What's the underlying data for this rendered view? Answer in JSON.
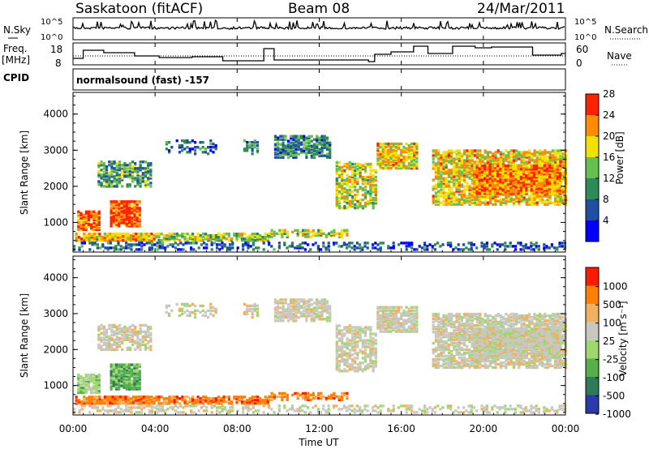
{
  "header": {
    "station": "Saskatoon (fitACF)",
    "beam": "Beam 08",
    "date": "24/Mar/2011"
  },
  "top_panels": {
    "nsky_label": "N.Sky",
    "nsky_ticks": [
      "10^5",
      "10^0"
    ],
    "nsearch_label": "N.Search",
    "nsearch_ticks": [
      "10^5",
      "10^0"
    ],
    "freq_label": "Freq.",
    "freq_unit": "[MHz]",
    "freq_ticks": [
      "18",
      "8"
    ],
    "nave_label": "Nave",
    "nave_ticks": [
      "60",
      "0"
    ],
    "cpid_label": "CPID",
    "cpid_value": "normalsound (fast) -157"
  },
  "chart_data": [
    {
      "type": "heatmap",
      "quantity": "Power",
      "ylabel": "Slant Range [km]",
      "y_ticks": [
        "1000",
        "2000",
        "3000",
        "4000"
      ],
      "ylim": [
        180,
        4600
      ],
      "colorbar_label": "Power [dB]",
      "colorbar_ticks": [
        "4",
        "8",
        "12",
        "16",
        "20",
        "24",
        "28"
      ],
      "colors": [
        "#0000ff",
        "#1e4fa0",
        "#2e8b57",
        "#66c050",
        "#f2e000",
        "#ff8c00",
        "#ff2200"
      ]
    },
    {
      "type": "heatmap",
      "quantity": "Velocity",
      "ylabel": "Slant Range [km]",
      "y_ticks": [
        "1000",
        "2000",
        "3000",
        "4000"
      ],
      "ylim": [
        180,
        4600
      ],
      "colorbar_label": "Velocity [m s⁻¹]",
      "colorbar_ticks": [
        "1000",
        "500",
        "100",
        "25",
        "-25",
        "-100",
        "-500",
        "-1000"
      ],
      "colors": [
        "#2b3aa8",
        "#2f7a5a",
        "#55b04a",
        "#a0d870",
        "#c8c8c0",
        "#f0b060",
        "#ff8000",
        "#ff1a00"
      ]
    }
  ],
  "x_axis": {
    "label": "Time UT",
    "ticks": [
      "00:00",
      "04:00",
      "08:00",
      "12:00",
      "16:00",
      "20:00",
      "00:00"
    ]
  }
}
